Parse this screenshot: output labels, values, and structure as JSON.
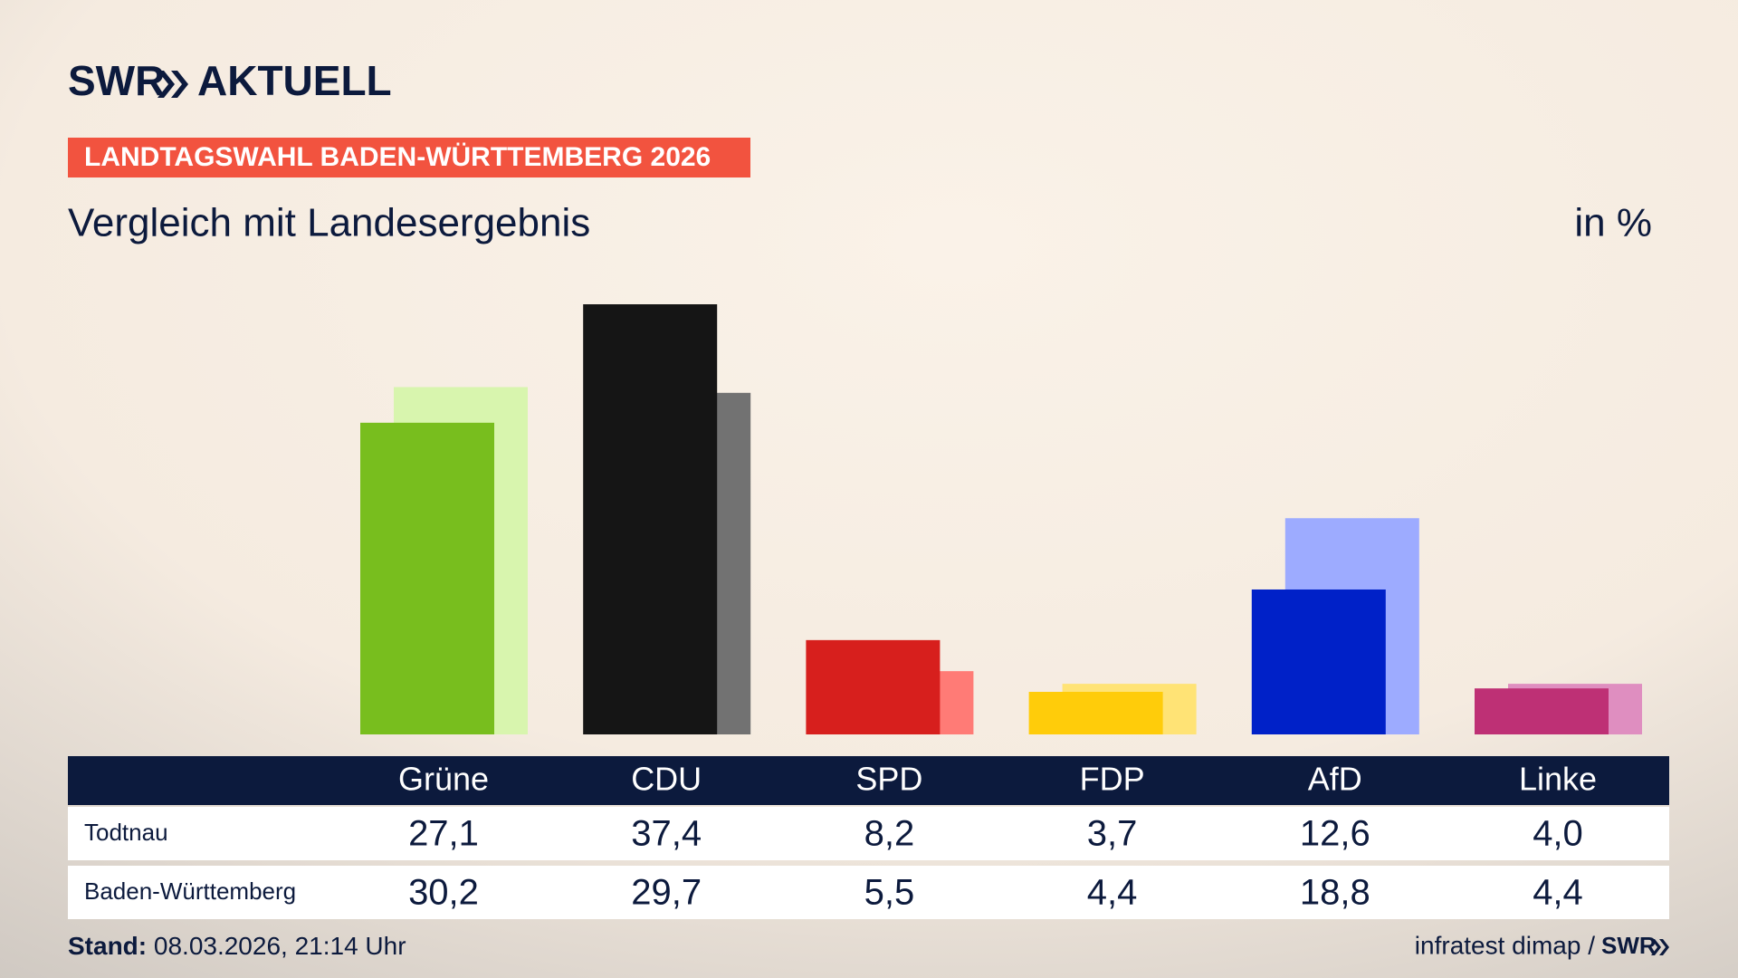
{
  "chart_data": {
    "type": "bar",
    "brand": "SWR",
    "brand_name": "AKTUELL",
    "kicker": "LANDTAGSWAHL BADEN-WÜRTTEMBERG 2026",
    "title": "Vergleich mit Landesergebnis",
    "unit": "in %",
    "categories": [
      "Grüne",
      "CDU",
      "SPD",
      "FDP",
      "AfD",
      "Linke"
    ],
    "series": [
      {
        "name": "Todtnau",
        "colors": [
          "#78be1e",
          "#151515",
          "#d71f1d",
          "#ffcc0a",
          "#0021c8",
          "#be3075"
        ],
        "values": [
          27.1,
          37.4,
          8.2,
          3.7,
          12.6,
          4.0
        ],
        "value_labels": [
          "27,1",
          "37,4",
          "8,2",
          "3,7",
          "12,6",
          "4,0"
        ]
      },
      {
        "name": "Baden-Württemberg",
        "colors": [
          "#d8f5ae",
          "#727272",
          "#ff7b76",
          "#ffe375",
          "#9dabff",
          "#df8ec0"
        ],
        "values": [
          30.2,
          29.7,
          5.5,
          4.4,
          18.8,
          4.4
        ],
        "value_labels": [
          "30,2",
          "29,7",
          "5,5",
          "4,4",
          "18,8",
          "4,4"
        ]
      }
    ],
    "footer": {
      "stand_label": "Stand:",
      "stand": "08.03.2026, 21:14 Uhr",
      "source": "infratest dimap /",
      "source_brand": "SWR"
    }
  }
}
